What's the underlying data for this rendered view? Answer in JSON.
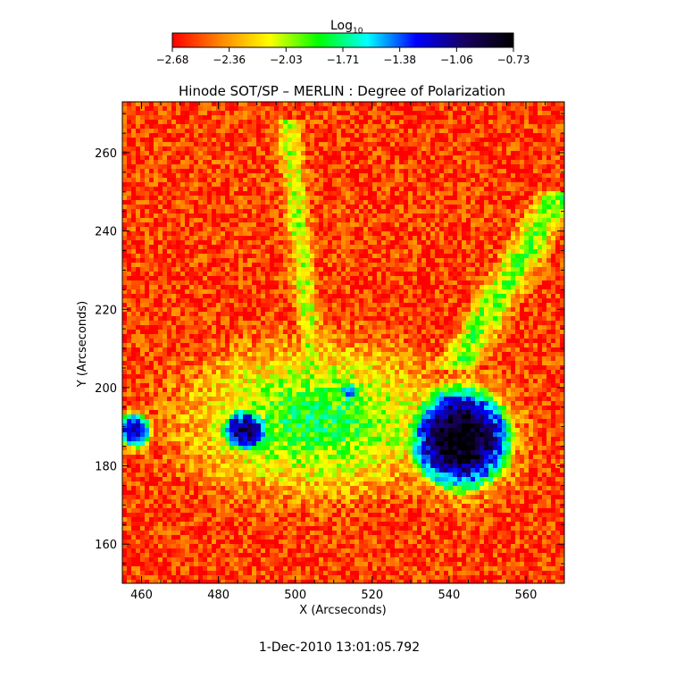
{
  "chart_data": {
    "type": "heatmap",
    "title": "Hinode SOT/SP – MERLIN : Degree of Polarization",
    "xlabel": "X (Arcseconds)",
    "ylabel": "Y (Arcseconds)",
    "xlim": [
      455,
      570
    ],
    "ylim": [
      150,
      273
    ],
    "x_ticks": [
      460,
      480,
      500,
      520,
      540,
      560
    ],
    "y_ticks": [
      160,
      180,
      200,
      220,
      240,
      260
    ],
    "colorbar": {
      "label_main": "Log",
      "label_sub": "10",
      "ticks": [
        "−2.68",
        "−2.36",
        "−2.03",
        "−1.71",
        "−1.38",
        "−1.06",
        "−0.73"
      ],
      "colormap": [
        "#ff0000",
        "#ff8800",
        "#ffff00",
        "#00ff00",
        "#00ffff",
        "#0000ff",
        "#180060",
        "#000000"
      ]
    },
    "features": [
      {
        "name": "sunspot-large",
        "x": 543,
        "y": 187,
        "rx": 15,
        "ry": 15,
        "level": 1.0
      },
      {
        "name": "pore-west",
        "x": 487,
        "y": 189,
        "rx": 7,
        "ry": 6,
        "level": 0.85
      },
      {
        "name": "pore-left-edge",
        "x": 458,
        "y": 189,
        "rx": 5,
        "ry": 5,
        "level": 0.8
      },
      {
        "name": "pore-center",
        "x": 514,
        "y": 199,
        "rx": 3,
        "ry": 3,
        "level": 0.6
      },
      {
        "name": "plage-belt",
        "x": 505,
        "y": 192,
        "rx": 40,
        "ry": 22,
        "level": 0.45
      }
    ],
    "grid": false,
    "legend": "colorbar-top"
  },
  "footer": {
    "timestamp": "1-Dec-2010 13:01:05.792"
  }
}
